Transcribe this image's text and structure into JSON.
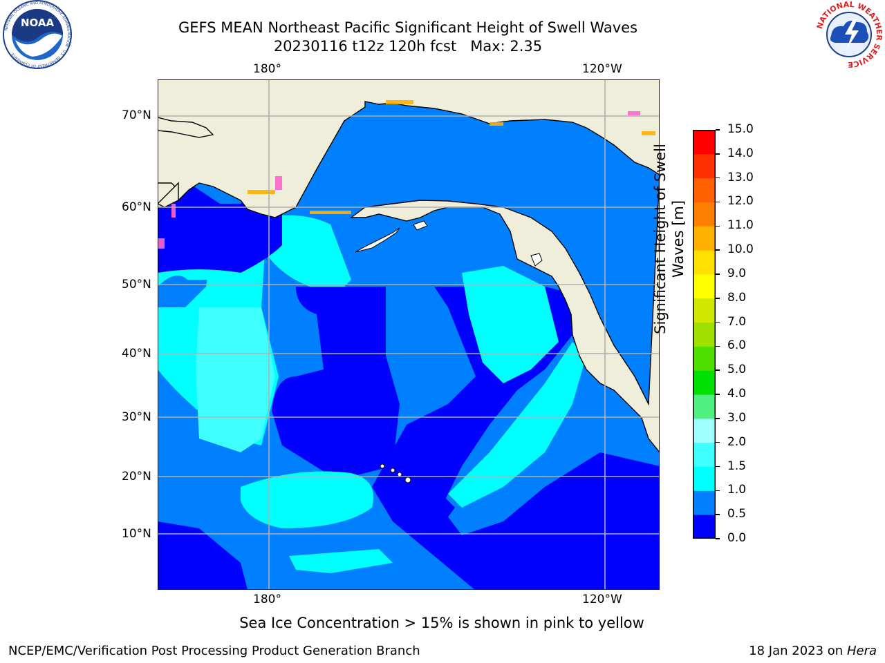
{
  "header": {
    "title_line1": "GEFS MEAN Northeast Pacific Significant Height of Swell Waves",
    "title_line2": "20230116 t12z 120h fcst   Max: 2.35"
  },
  "map": {
    "top_lon_labels": [
      "180°",
      "120°W"
    ],
    "bottom_lon_labels": [
      "180°",
      "120°W"
    ],
    "lat_labels": [
      "70°N",
      "60°N",
      "50°N",
      "40°N",
      "30°N",
      "20°N",
      "10°N"
    ],
    "colors": {
      "land": "#efeedb",
      "coast": "#000000",
      "grid": "#b0b0b0"
    }
  },
  "colorbar": {
    "label": "Significant Height of Swell Waves [m]",
    "label_line1": "Significant Height of Swell",
    "label_line2": "Waves [m]",
    "ticks": [
      "0.0",
      "0.5",
      "1.0",
      "1.5",
      "2.0",
      "3.0",
      "4.0",
      "5.0",
      "6.0",
      "7.0",
      "8.0",
      "9.0",
      "10.0",
      "11.0",
      "12.0",
      "13.0",
      "14.0",
      "15.0"
    ],
    "colors": [
      "#0000ff",
      "#0080ff",
      "#00ffff",
      "#40ffff",
      "#a0ffff",
      "#50f080",
      "#00e000",
      "#50e000",
      "#a0e000",
      "#d0e800",
      "#ffff00",
      "#ffe000",
      "#ffb000",
      "#ff8000",
      "#ff6000",
      "#ff3000",
      "#ff0000"
    ]
  },
  "note": "Sea Ice Concentration > 15% is shown in pink to yellow",
  "footer": {
    "left": "NCEP/EMC/Verification Post Processing Product Generation Branch",
    "right_prefix": "18 Jan 2023 on ",
    "right_host": "Hera"
  },
  "logos": {
    "noaa_text": "NOAA",
    "noaa_ring_text": "NATIONAL OCEANIC AND ATMOSPHERIC ADMINISTRATION · U.S. DEPARTMENT OF COMMERCE",
    "nws_ring_text": "NATIONAL WEATHER SERVICE"
  }
}
